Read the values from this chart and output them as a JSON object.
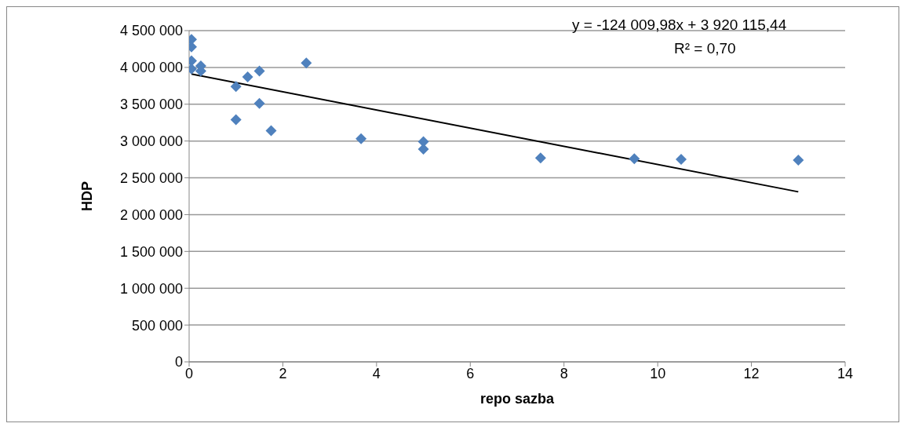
{
  "chart_data": {
    "type": "scatter",
    "xlabel": "repo sazba",
    "ylabel": "HDP",
    "xlim": [
      0,
      14
    ],
    "xticks": [
      0,
      2,
      4,
      6,
      8,
      10,
      12,
      14
    ],
    "ylim": [
      0,
      4500000
    ],
    "yticks": [
      {
        "value": 0,
        "label": "0"
      },
      {
        "value": 500000,
        "label": "500 000"
      },
      {
        "value": 1000000,
        "label": "1 000 000"
      },
      {
        "value": 1500000,
        "label": "1 500 000"
      },
      {
        "value": 2000000,
        "label": "2 000 000"
      },
      {
        "value": 2500000,
        "label": "2 500 000"
      },
      {
        "value": 3000000,
        "label": "3 000 000"
      },
      {
        "value": 3500000,
        "label": "3 500 000"
      },
      {
        "value": 4000000,
        "label": "4 000 000"
      },
      {
        "value": 4500000,
        "label": "4 500 000"
      }
    ],
    "grid": "y",
    "legend": false,
    "marker": "diamond",
    "series": [
      {
        "color": "#4f81bd",
        "x": [
          0.05,
          0.05,
          0.05,
          0.05,
          0.25,
          0.25,
          1,
          1,
          1.25,
          1.5,
          1.5,
          1.75,
          2.5,
          3.67,
          5,
          5,
          7.5,
          9.5,
          10.5,
          13
        ],
        "values": [
          4380000,
          4280000,
          4090000,
          3980000,
          4020000,
          3950000,
          3740000,
          3290000,
          3870000,
          3950000,
          3510000,
          3140000,
          4060000,
          3030000,
          2990000,
          2890000,
          2770000,
          2760000,
          2750000,
          2740000
        ]
      },
      {
        "type": "line",
        "color": "#000000",
        "x": [
          0.05,
          13
        ],
        "values": [
          3910000,
          2310000
        ],
        "marker": "none",
        "line_style": "solid"
      }
    ],
    "annotations": [
      "y = -124 009,98x + 3 920 115,44",
      "R² = 0,70"
    ]
  }
}
